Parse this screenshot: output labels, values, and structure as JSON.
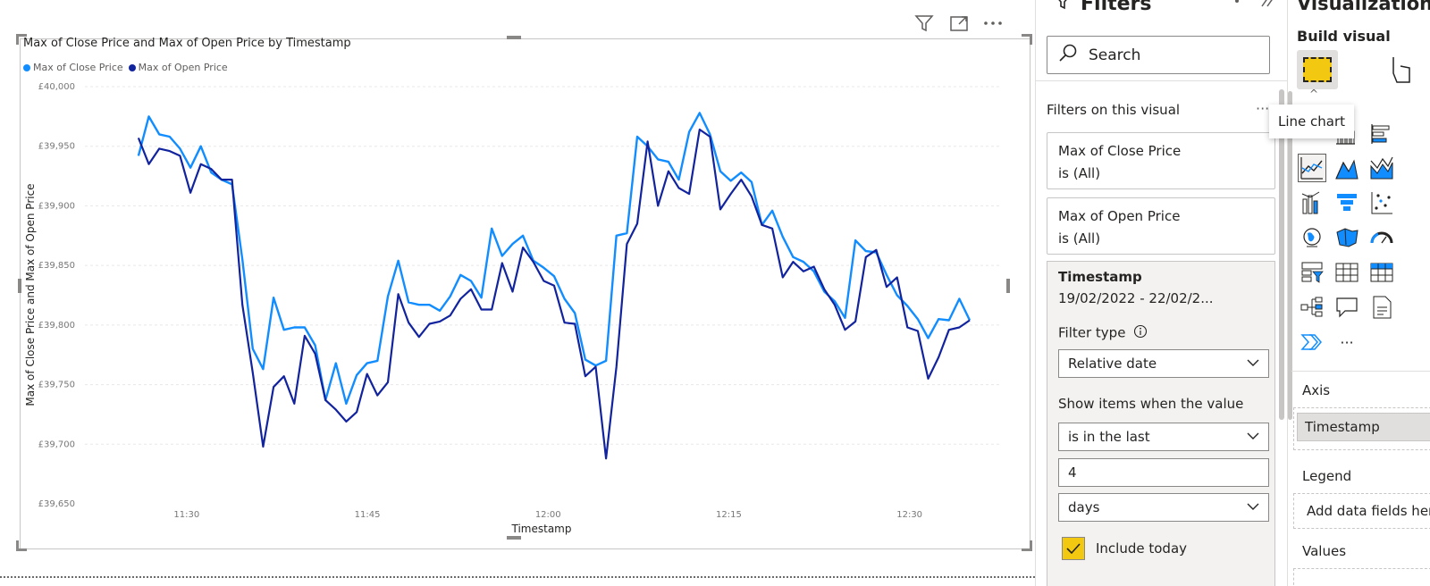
{
  "visual_header": {
    "icons": [
      "filter-icon",
      "focus-mode-icon",
      "more-options-icon"
    ]
  },
  "chart_data": {
    "type": "line",
    "title": "Max of Close Price and Max of Open Price by Timestamp",
    "xlabel": "Timestamp",
    "ylabel": "Max of Close Price and Max of Open Price",
    "x_ticks": [
      "11:30",
      "11:45",
      "12:00",
      "12:15",
      "12:30"
    ],
    "y_ticks": [
      "£39,650",
      "£39,700",
      "£39,750",
      "£39,800",
      "£39,850",
      "£39,900",
      "£39,950",
      "£40,000"
    ],
    "ylim": [
      39650,
      40000
    ],
    "x_range": [
      "11:22",
      "12:37"
    ],
    "grid": true,
    "legend_position": "top-left",
    "series": [
      {
        "name": "Max of Close Price",
        "color": "#118dff",
        "values": [
          39942,
          39975,
          39960,
          39958,
          39948,
          39932,
          39950,
          39928,
          39922,
          39918,
          39855,
          39780,
          39763,
          39823,
          39796,
          39798,
          39798,
          39783,
          39737,
          39768,
          39734,
          39758,
          39768,
          39770,
          39824,
          39854,
          39819,
          39817,
          39817,
          39812,
          39824,
          39842,
          39837,
          39823,
          39881,
          39858,
          39868,
          39875,
          39854,
          39848,
          39841,
          39822,
          39810,
          39771,
          39766,
          39770,
          39875,
          39877,
          39958,
          39950,
          39939,
          39937,
          39922,
          39962,
          39978,
          39960,
          39929,
          39921,
          39928,
          39920,
          39884,
          39896,
          39874,
          39857,
          39853,
          39845,
          39828,
          39820,
          39806,
          39871,
          39862,
          39861,
          39842,
          39825,
          39816,
          39805,
          39789,
          39805,
          39804,
          39822,
          39804
        ]
      },
      {
        "name": "Max of Open Price",
        "color": "#12239e",
        "values": [
          39957,
          39935,
          39948,
          39946,
          39942,
          39911,
          39935,
          39931,
          39922,
          39922,
          39817,
          39760,
          39698,
          39748,
          39757,
          39734,
          39791,
          39776,
          39737,
          39729,
          39719,
          39727,
          39759,
          39741,
          39752,
          39826,
          39802,
          39790,
          39801,
          39803,
          39808,
          39822,
          39830,
          39813,
          39813,
          39852,
          39828,
          39865,
          39853,
          39837,
          39833,
          39802,
          39801,
          39757,
          39765,
          39688,
          39765,
          39868,
          39885,
          39954,
          39900,
          39929,
          39915,
          39910,
          39964,
          39958,
          39897,
          39910,
          39922,
          39908,
          39884,
          39881,
          39840,
          39853,
          39845,
          39849,
          39830,
          39817,
          39796,
          39803,
          39857,
          39863,
          39832,
          39840,
          39798,
          39795,
          39755,
          39773,
          39796,
          39798,
          39804
        ]
      }
    ]
  },
  "filters_pane": {
    "title": "Filters",
    "search_placeholder": "Search",
    "section_label": "Filters on this visual",
    "more": "···",
    "cards": [
      {
        "title": "Max of Close Price",
        "sub": "is (All)"
      },
      {
        "title": "Max of Open Price",
        "sub": "is (All)"
      }
    ],
    "timestamp_card": {
      "title": "Timestamp",
      "range": "19/02/2022 - 22/02/2...",
      "filter_type_label": "Filter type",
      "filter_type_value": "Relative date",
      "show_items_label": "Show items when the value",
      "condition_value": "is in the last",
      "amount_value": "4",
      "unit_value": "days",
      "include_today_label": "Include today"
    }
  },
  "viz_pane": {
    "title": "Visualizations",
    "build_visual": "Build visual",
    "tooltip": "Line chart",
    "more_visuals": "···",
    "wells": {
      "axis_label": "Axis",
      "axis_field": "Timestamp",
      "legend_label": "Legend",
      "legend_placeholder": "Add data fields here",
      "values_label": "Values"
    }
  }
}
